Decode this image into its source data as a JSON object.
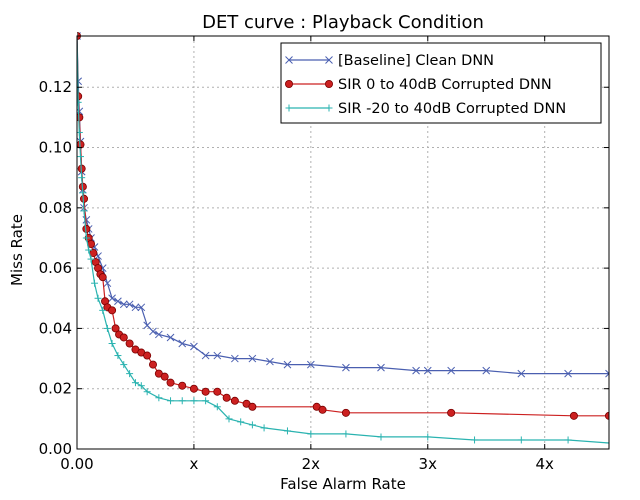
{
  "chart_data": {
    "type": "line",
    "title": "DET curve : Playback Condition",
    "xlabel": "False Alarm Rate",
    "ylabel": "Miss Rate",
    "xlim": [
      0,
      4.55
    ],
    "ylim": [
      0,
      0.137
    ],
    "grid": true,
    "legend_position": "top-right",
    "x_ticks": [
      {
        "value": 0,
        "label": "0.00"
      },
      {
        "value": 1,
        "label": "x"
      },
      {
        "value": 2,
        "label": "2x"
      },
      {
        "value": 3,
        "label": "3x"
      },
      {
        "value": 4,
        "label": "4x"
      }
    ],
    "y_ticks": [
      {
        "value": 0,
        "label": "0.00"
      },
      {
        "value": 0.02,
        "label": "0.02"
      },
      {
        "value": 0.04,
        "label": "0.04"
      },
      {
        "value": 0.06,
        "label": "0.06"
      },
      {
        "value": 0.08,
        "label": "0.08"
      },
      {
        "value": 0.1,
        "label": "0.10"
      },
      {
        "value": 0.12,
        "label": "0.12"
      }
    ],
    "series": [
      {
        "name": "[Baseline] Clean DNN",
        "color": "#4a5fb0",
        "marker": "x",
        "x": [
          0.0,
          0.01,
          0.02,
          0.03,
          0.04,
          0.05,
          0.06,
          0.08,
          0.1,
          0.12,
          0.15,
          0.18,
          0.22,
          0.26,
          0.3,
          0.35,
          0.4,
          0.45,
          0.5,
          0.55,
          0.6,
          0.65,
          0.7,
          0.8,
          0.9,
          1.0,
          1.1,
          1.2,
          1.35,
          1.5,
          1.65,
          1.8,
          2.0,
          2.3,
          2.6,
          2.9,
          3.0,
          3.2,
          3.5,
          3.8,
          4.2,
          4.55
        ],
        "y": [
          0.137,
          0.122,
          0.112,
          0.102,
          0.092,
          0.086,
          0.08,
          0.076,
          0.073,
          0.07,
          0.067,
          0.064,
          0.06,
          0.055,
          0.05,
          0.049,
          0.048,
          0.048,
          0.047,
          0.047,
          0.041,
          0.039,
          0.038,
          0.037,
          0.035,
          0.034,
          0.031,
          0.031,
          0.03,
          0.03,
          0.029,
          0.028,
          0.028,
          0.027,
          0.027,
          0.026,
          0.026,
          0.026,
          0.026,
          0.025,
          0.025,
          0.025
        ]
      },
      {
        "name": "SIR 0 to 40dB Corrupted DNN",
        "color": "#cc2020",
        "marker": "o",
        "x": [
          0.0,
          0.01,
          0.02,
          0.03,
          0.04,
          0.05,
          0.06,
          0.08,
          0.1,
          0.12,
          0.14,
          0.16,
          0.18,
          0.2,
          0.22,
          0.24,
          0.26,
          0.3,
          0.33,
          0.36,
          0.4,
          0.45,
          0.5,
          0.55,
          0.6,
          0.65,
          0.7,
          0.75,
          0.8,
          0.9,
          1.0,
          1.1,
          1.2,
          1.28,
          1.35,
          1.45,
          1.5,
          2.05,
          2.1,
          2.3,
          3.2,
          4.25,
          4.55
        ],
        "y": [
          0.137,
          0.117,
          0.11,
          0.101,
          0.093,
          0.087,
          0.083,
          0.073,
          0.07,
          0.068,
          0.065,
          0.062,
          0.06,
          0.058,
          0.057,
          0.049,
          0.047,
          0.046,
          0.04,
          0.038,
          0.037,
          0.035,
          0.033,
          0.032,
          0.031,
          0.028,
          0.025,
          0.024,
          0.022,
          0.021,
          0.02,
          0.019,
          0.019,
          0.017,
          0.016,
          0.015,
          0.014,
          0.014,
          0.013,
          0.012,
          0.012,
          0.011,
          0.011
        ]
      },
      {
        "name": "SIR -20 to 40dB Corrupted DNN",
        "color": "#2ab3b0",
        "marker": "+",
        "x": [
          0.0,
          0.01,
          0.02,
          0.03,
          0.04,
          0.05,
          0.06,
          0.08,
          0.1,
          0.12,
          0.15,
          0.18,
          0.22,
          0.26,
          0.3,
          0.35,
          0.4,
          0.45,
          0.5,
          0.55,
          0.6,
          0.7,
          0.8,
          0.9,
          1.0,
          1.1,
          1.2,
          1.3,
          1.4,
          1.5,
          1.6,
          1.8,
          2.0,
          2.3,
          2.6,
          3.0,
          3.4,
          3.8,
          4.2,
          4.55
        ],
        "y": [
          0.137,
          0.115,
          0.105,
          0.097,
          0.09,
          0.085,
          0.079,
          0.07,
          0.066,
          0.063,
          0.055,
          0.05,
          0.046,
          0.04,
          0.035,
          0.031,
          0.028,
          0.025,
          0.022,
          0.021,
          0.019,
          0.017,
          0.016,
          0.016,
          0.016,
          0.016,
          0.014,
          0.01,
          0.009,
          0.008,
          0.007,
          0.006,
          0.005,
          0.005,
          0.004,
          0.004,
          0.003,
          0.003,
          0.003,
          0.002
        ]
      }
    ]
  }
}
